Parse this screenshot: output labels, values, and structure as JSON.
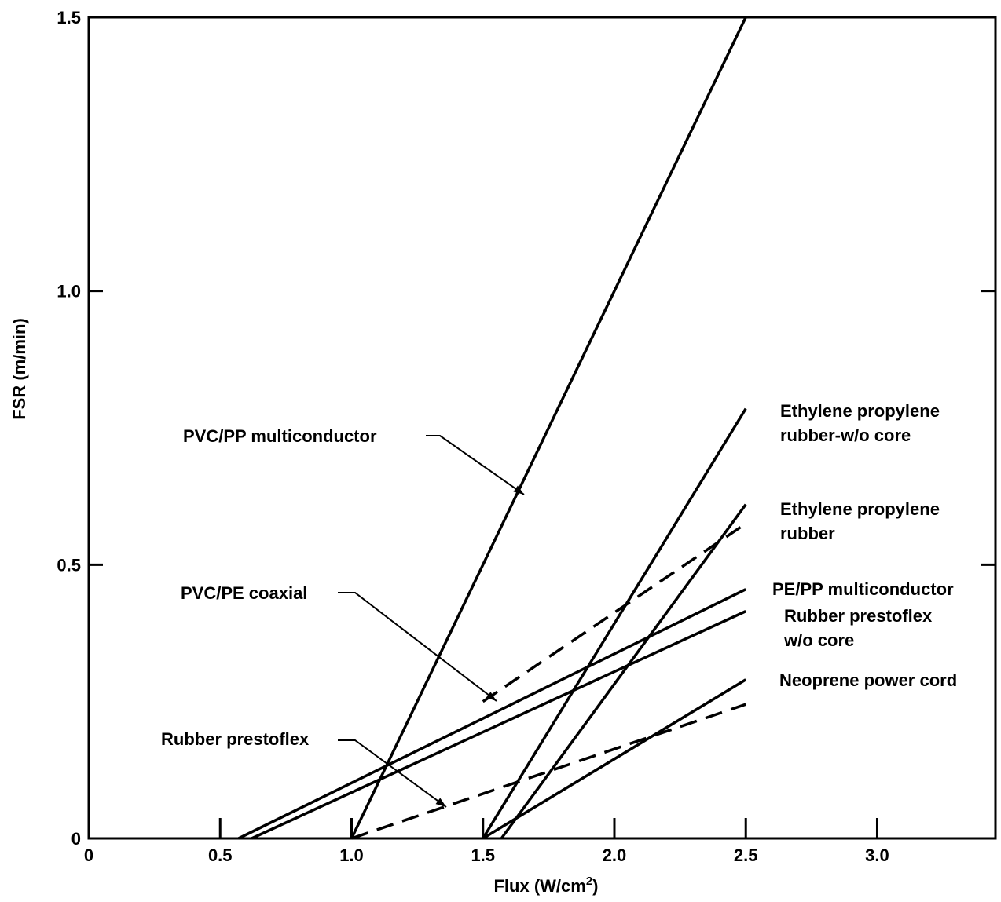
{
  "chart_data": {
    "type": "line",
    "xlabel": "Flux (W/cm",
    "xlabel_superscript": "2",
    "xlabel_suffix": ")",
    "ylabel": "FSR (m/min)",
    "xlim": [
      0,
      3.45
    ],
    "ylim": [
      0,
      1.5
    ],
    "x_ticks": [
      0,
      0.5,
      1.0,
      1.5,
      2.0,
      2.5,
      3.0
    ],
    "x_tick_labels": [
      "0",
      "0.5",
      "1.0",
      "1.5",
      "2.0",
      "2.5",
      "3.0"
    ],
    "y_ticks": [
      0,
      0.5,
      1.0,
      1.5
    ],
    "y_tick_labels": [
      "0",
      "0.5",
      "1.0",
      "1.5"
    ],
    "grid": false,
    "series": [
      {
        "name": "PVC/PP multiconductor",
        "style": "solid",
        "x": [
          1.0,
          2.5
        ],
        "y": [
          0.0,
          1.5
        ]
      },
      {
        "name": "Ethylene propylene rubber-w/o core",
        "style": "solid",
        "x": [
          1.5,
          2.5
        ],
        "y": [
          0.0,
          0.785
        ]
      },
      {
        "name": "Ethylene propylene rubber",
        "style": "solid",
        "x": [
          1.57,
          2.5
        ],
        "y": [
          0.0,
          0.61
        ]
      },
      {
        "name": "PVC/PE coaxial",
        "style": "dashed",
        "x": [
          1.5,
          2.5
        ],
        "y": [
          0.25,
          0.575
        ]
      },
      {
        "name": "PE/PP multiconductor",
        "style": "solid",
        "x": [
          0.57,
          2.5
        ],
        "y": [
          0.0,
          0.455
        ]
      },
      {
        "name": "Rubber prestoflex w/o core",
        "style": "solid",
        "x": [
          0.62,
          2.5
        ],
        "y": [
          0.0,
          0.415
        ]
      },
      {
        "name": "Neoprene power cord",
        "style": "solid",
        "x": [
          1.5,
          2.5
        ],
        "y": [
          0.0,
          0.29
        ]
      },
      {
        "name": "Rubber prestoflex",
        "style": "dashed",
        "x": [
          1.0,
          2.5
        ],
        "y": [
          0.0,
          0.245
        ]
      }
    ],
    "annotations": [
      {
        "id": "pvc-pp",
        "lines": [
          "PVC/PP multiconductor"
        ]
      },
      {
        "id": "epr-wo",
        "lines": [
          "Ethylene propylene",
          "rubber-w/o core"
        ]
      },
      {
        "id": "epr",
        "lines": [
          "Ethylene propylene",
          "rubber"
        ]
      },
      {
        "id": "pvc-pe",
        "lines": [
          "PVC/PE coaxial"
        ]
      },
      {
        "id": "pe-pp",
        "lines": [
          "PE/PP multiconductor"
        ]
      },
      {
        "id": "rp-wo",
        "lines": [
          "Rubber prestoflex",
          "w/o core"
        ]
      },
      {
        "id": "neo",
        "lines": [
          "Neoprene power cord"
        ]
      },
      {
        "id": "rp",
        "lines": [
          "Rubber prestoflex"
        ]
      }
    ]
  }
}
